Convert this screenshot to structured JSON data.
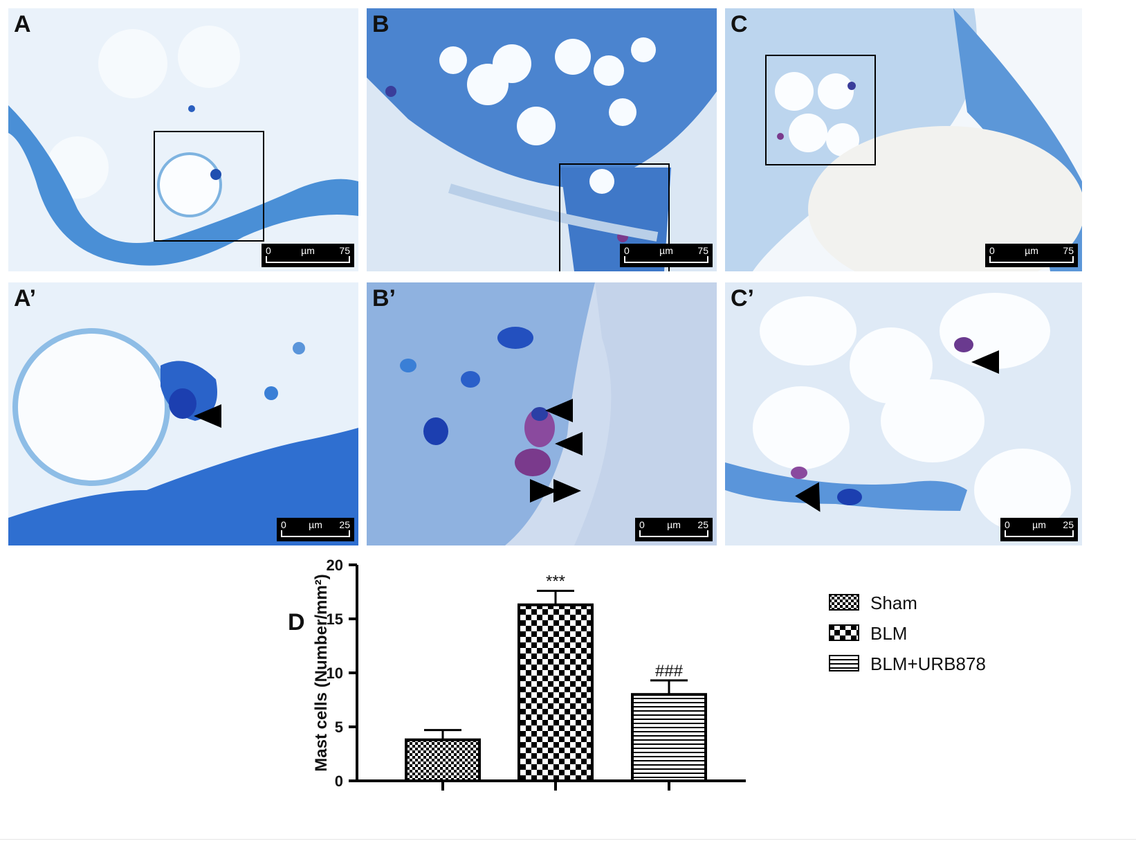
{
  "panels": {
    "A": {
      "label": "A",
      "scale": {
        "min": "0",
        "unit": "µm",
        "max": "75"
      }
    },
    "B": {
      "label": "B",
      "scale": {
        "min": "0",
        "unit": "µm",
        "max": "75"
      }
    },
    "C": {
      "label": "C",
      "scale": {
        "min": "0",
        "unit": "µm",
        "max": "75"
      }
    },
    "A2": {
      "label": "A’",
      "scale": {
        "min": "0",
        "unit": "µm",
        "max": "25"
      }
    },
    "B2": {
      "label": "B’",
      "scale": {
        "min": "0",
        "unit": "µm",
        "max": "25"
      }
    },
    "C2": {
      "label": "C’",
      "scale": {
        "min": "0",
        "unit": "µm",
        "max": "25"
      }
    }
  },
  "colors": {
    "stain_light": "#e9f1f9",
    "stain_mid": "#6aa8dc",
    "stain_dark": "#1f5fbf",
    "mast_cell": "#7a3a8c"
  },
  "panel_d_label": "D",
  "chart_data": {
    "type": "bar",
    "ylabel": "Mast cells (Number/mm²)",
    "ylim": [
      0,
      20
    ],
    "yticks": [
      0,
      5,
      10,
      15,
      20
    ],
    "categories": [
      "Sham",
      "BLM",
      "BLM+URB878"
    ],
    "values": [
      3.8,
      16.3,
      8.0
    ],
    "errors": [
      0.9,
      1.3,
      1.3
    ],
    "annotations": [
      "",
      "***",
      "###"
    ],
    "patterns": [
      "fine-checker",
      "coarse-checker",
      "horizontal-lines"
    ],
    "legend": [
      "Sham",
      "BLM",
      "BLM+URB878"
    ],
    "legend_position": "right"
  }
}
